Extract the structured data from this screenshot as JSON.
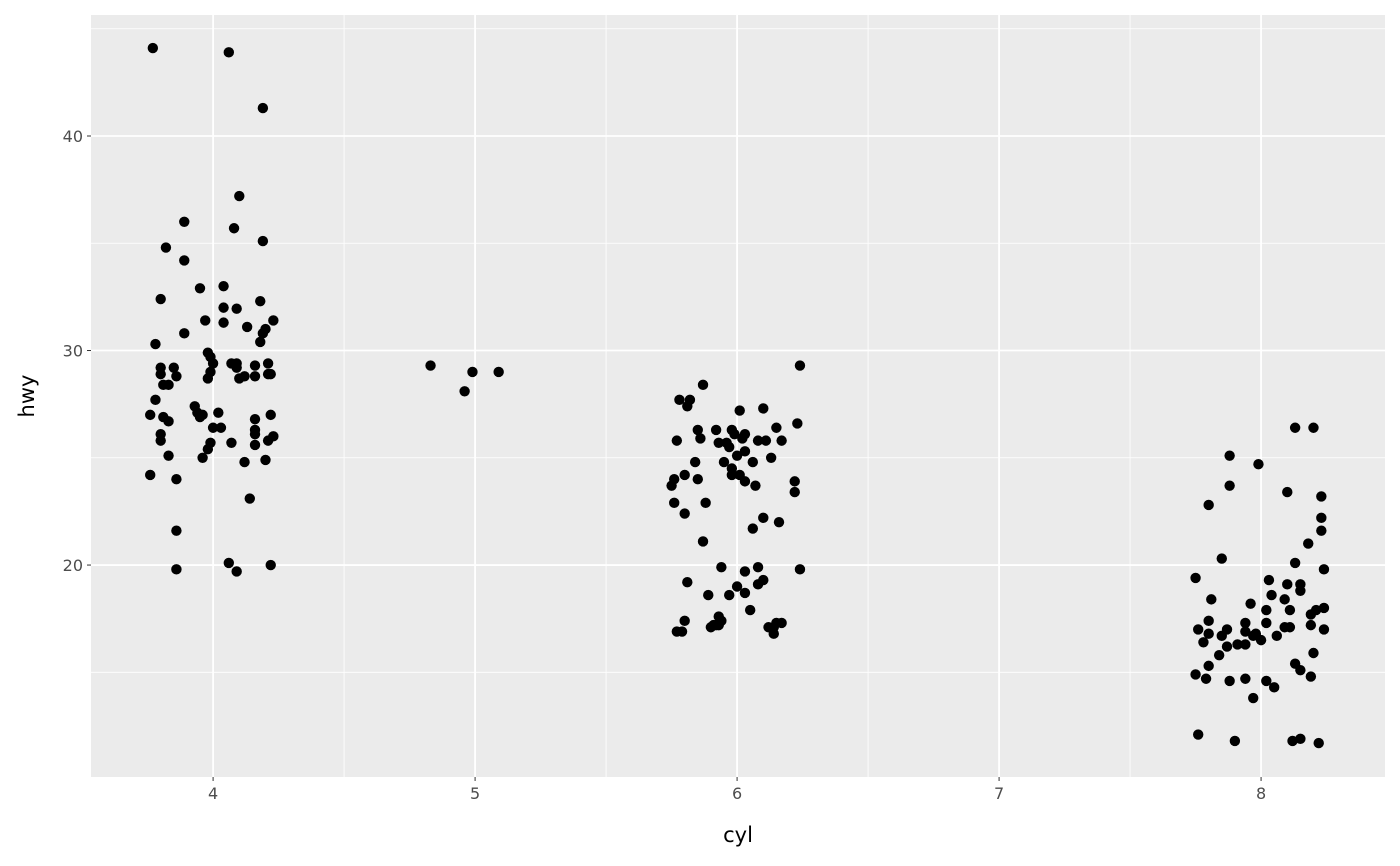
{
  "chart_data": {
    "type": "scatter",
    "title": "",
    "xlabel": "cyl",
    "ylabel": "hwy",
    "xlim": [
      3.534,
      8.473
    ],
    "ylim": [
      10.12,
      45.64
    ],
    "x_ticks": [
      4,
      5,
      6,
      7,
      8
    ],
    "y_ticks": [
      20,
      30,
      40
    ],
    "x_minor": [
      4.5,
      5.5,
      6.5,
      7.5
    ],
    "y_minor": [
      15,
      25,
      35,
      45
    ],
    "grid": true,
    "legend": "none",
    "colors": {
      "panel": "#EBEBEB",
      "grid": "#FFFFFF",
      "point": "#000000"
    },
    "points": [
      [
        3.77,
        44.1
      ],
      [
        4.06,
        43.9
      ],
      [
        4.19,
        41.3
      ],
      [
        4.1,
        37.2
      ],
      [
        3.89,
        36.0
      ],
      [
        4.08,
        35.7
      ],
      [
        4.19,
        35.1
      ],
      [
        3.82,
        34.8
      ],
      [
        3.89,
        34.2
      ],
      [
        4.04,
        33.0
      ],
      [
        3.95,
        32.9
      ],
      [
        3.8,
        32.4
      ],
      [
        4.18,
        32.3
      ],
      [
        4.04,
        32.0
      ],
      [
        4.09,
        31.95
      ],
      [
        4.23,
        31.4
      ],
      [
        3.97,
        31.4
      ],
      [
        4.04,
        31.3
      ],
      [
        4.13,
        31.1
      ],
      [
        4.2,
        31.0
      ],
      [
        4.19,
        30.8
      ],
      [
        3.89,
        30.8
      ],
      [
        4.18,
        30.4
      ],
      [
        3.78,
        30.3
      ],
      [
        3.98,
        29.9
      ],
      [
        3.99,
        29.7
      ],
      [
        4.0,
        29.4
      ],
      [
        3.8,
        29.2
      ],
      [
        3.85,
        29.2
      ],
      [
        4.07,
        29.4
      ],
      [
        4.09,
        29.4
      ],
      [
        4.16,
        29.3
      ],
      [
        4.21,
        29.4
      ],
      [
        3.8,
        28.9
      ],
      [
        3.99,
        29.0
      ],
      [
        4.09,
        29.2
      ],
      [
        3.86,
        28.8
      ],
      [
        4.12,
        28.8
      ],
      [
        4.1,
        28.7
      ],
      [
        4.16,
        28.8
      ],
      [
        4.21,
        28.9
      ],
      [
        4.22,
        28.9
      ],
      [
        3.98,
        28.7
      ],
      [
        3.81,
        28.4
      ],
      [
        3.83,
        28.4
      ],
      [
        3.78,
        27.7
      ],
      [
        3.93,
        27.4
      ],
      [
        3.94,
        27.1
      ],
      [
        3.76,
        27.0
      ],
      [
        3.96,
        27.0
      ],
      [
        4.02,
        27.1
      ],
      [
        4.22,
        27.0
      ],
      [
        3.81,
        26.9
      ],
      [
        3.95,
        26.9
      ],
      [
        4.16,
        26.8
      ],
      [
        3.83,
        26.7
      ],
      [
        4.0,
        26.4
      ],
      [
        4.03,
        26.4
      ],
      [
        3.8,
        26.1
      ],
      [
        4.16,
        26.3
      ],
      [
        4.16,
        26.1
      ],
      [
        4.23,
        26.0
      ],
      [
        3.8,
        25.8
      ],
      [
        3.99,
        25.7
      ],
      [
        4.07,
        25.7
      ],
      [
        4.16,
        25.6
      ],
      [
        4.21,
        25.8
      ],
      [
        3.98,
        25.4
      ],
      [
        3.83,
        25.1
      ],
      [
        3.96,
        25.0
      ],
      [
        4.2,
        24.9
      ],
      [
        4.12,
        24.8
      ],
      [
        3.76,
        24.2
      ],
      [
        3.86,
        24.0
      ],
      [
        4.14,
        23.1
      ],
      [
        3.86,
        21.6
      ],
      [
        4.06,
        20.1
      ],
      [
        4.22,
        20.0
      ],
      [
        3.86,
        19.8
      ],
      [
        4.09,
        19.7
      ],
      [
        4.83,
        29.3
      ],
      [
        4.99,
        29.0
      ],
      [
        5.09,
        29.0
      ],
      [
        4.96,
        28.1
      ],
      [
        6.24,
        29.3
      ],
      [
        5.87,
        28.4
      ],
      [
        5.78,
        27.7
      ],
      [
        5.82,
        27.7
      ],
      [
        5.81,
        27.4
      ],
      [
        6.01,
        27.2
      ],
      [
        6.1,
        27.3
      ],
      [
        6.23,
        26.6
      ],
      [
        5.85,
        26.3
      ],
      [
        5.92,
        26.3
      ],
      [
        5.98,
        26.3
      ],
      [
        6.15,
        26.4
      ],
      [
        5.99,
        26.1
      ],
      [
        6.03,
        26.1
      ],
      [
        5.86,
        25.9
      ],
      [
        6.02,
        25.9
      ],
      [
        5.77,
        25.8
      ],
      [
        5.93,
        25.7
      ],
      [
        5.96,
        25.7
      ],
      [
        6.08,
        25.8
      ],
      [
        6.11,
        25.8
      ],
      [
        6.17,
        25.8
      ],
      [
        5.97,
        25.5
      ],
      [
        6.03,
        25.3
      ],
      [
        6.0,
        25.1
      ],
      [
        6.13,
        25.0
      ],
      [
        5.84,
        24.8
      ],
      [
        5.95,
        24.8
      ],
      [
        6.06,
        24.8
      ],
      [
        5.98,
        24.5
      ],
      [
        6.01,
        24.2
      ],
      [
        5.8,
        24.2
      ],
      [
        5.98,
        24.2
      ],
      [
        5.76,
        24.0
      ],
      [
        5.85,
        24.0
      ],
      [
        5.75,
        23.7
      ],
      [
        6.03,
        23.9
      ],
      [
        6.07,
        23.7
      ],
      [
        6.22,
        23.9
      ],
      [
        6.22,
        23.4
      ],
      [
        5.88,
        22.9
      ],
      [
        5.76,
        22.9
      ],
      [
        5.8,
        22.4
      ],
      [
        6.1,
        22.2
      ],
      [
        6.16,
        22.0
      ],
      [
        6.06,
        21.7
      ],
      [
        5.87,
        21.1
      ],
      [
        5.94,
        19.9
      ],
      [
        6.08,
        19.9
      ],
      [
        6.24,
        19.8
      ],
      [
        6.03,
        19.7
      ],
      [
        6.1,
        19.3
      ],
      [
        5.81,
        19.2
      ],
      [
        6.08,
        19.1
      ],
      [
        6.0,
        19.0
      ],
      [
        6.03,
        18.7
      ],
      [
        5.89,
        18.6
      ],
      [
        5.97,
        18.6
      ],
      [
        6.05,
        17.9
      ],
      [
        5.93,
        17.6
      ],
      [
        5.8,
        17.4
      ],
      [
        5.94,
        17.4
      ],
      [
        6.15,
        17.3
      ],
      [
        6.17,
        17.3
      ],
      [
        5.91,
        17.2
      ],
      [
        5.92,
        17.2
      ],
      [
        6.12,
        17.1
      ],
      [
        5.9,
        17.1
      ],
      [
        5.93,
        17.2
      ],
      [
        6.14,
        17.1
      ],
      [
        5.79,
        16.9
      ],
      [
        5.77,
        16.9
      ],
      [
        6.14,
        16.8
      ],
      [
        8.13,
        26.4
      ],
      [
        8.2,
        26.4
      ],
      [
        7.88,
        25.1
      ],
      [
        7.99,
        24.7
      ],
      [
        7.88,
        23.7
      ],
      [
        8.1,
        23.4
      ],
      [
        8.23,
        23.2
      ],
      [
        7.8,
        22.8
      ],
      [
        8.23,
        22.2
      ],
      [
        8.23,
        21.6
      ],
      [
        8.18,
        21.0
      ],
      [
        7.85,
        20.3
      ],
      [
        8.13,
        20.1
      ],
      [
        8.24,
        19.8
      ],
      [
        7.75,
        19.4
      ],
      [
        8.03,
        19.3
      ],
      [
        8.15,
        19.1
      ],
      [
        8.1,
        19.1
      ],
      [
        8.15,
        18.8
      ],
      [
        8.04,
        18.6
      ],
      [
        7.81,
        18.4
      ],
      [
        8.09,
        18.4
      ],
      [
        7.96,
        18.2
      ],
      [
        8.02,
        17.9
      ],
      [
        8.11,
        17.9
      ],
      [
        8.24,
        18.0
      ],
      [
        8.21,
        17.9
      ],
      [
        8.19,
        17.7
      ],
      [
        7.8,
        17.4
      ],
      [
        7.94,
        17.3
      ],
      [
        8.02,
        17.3
      ],
      [
        8.11,
        17.1
      ],
      [
        8.19,
        17.2
      ],
      [
        7.76,
        17.0
      ],
      [
        7.87,
        17.0
      ],
      [
        7.94,
        16.9
      ],
      [
        8.09,
        17.1
      ],
      [
        8.24,
        17.0
      ],
      [
        7.8,
        16.8
      ],
      [
        7.85,
        16.7
      ],
      [
        7.98,
        16.8
      ],
      [
        8.06,
        16.7
      ],
      [
        7.97,
        16.7
      ],
      [
        8.0,
        16.5
      ],
      [
        7.78,
        16.4
      ],
      [
        7.91,
        16.3
      ],
      [
        7.94,
        16.3
      ],
      [
        7.87,
        16.2
      ],
      [
        7.84,
        15.8
      ],
      [
        8.2,
        15.9
      ],
      [
        7.8,
        15.3
      ],
      [
        8.13,
        15.4
      ],
      [
        8.15,
        15.1
      ],
      [
        7.75,
        14.9
      ],
      [
        7.79,
        14.7
      ],
      [
        7.88,
        14.6
      ],
      [
        7.94,
        14.7
      ],
      [
        8.02,
        14.6
      ],
      [
        8.19,
        14.8
      ],
      [
        8.05,
        14.3
      ],
      [
        7.97,
        13.8
      ],
      [
        7.76,
        12.1
      ],
      [
        7.9,
        11.8
      ],
      [
        8.15,
        11.9
      ],
      [
        8.12,
        11.8
      ],
      [
        8.22,
        11.7
      ]
    ]
  }
}
